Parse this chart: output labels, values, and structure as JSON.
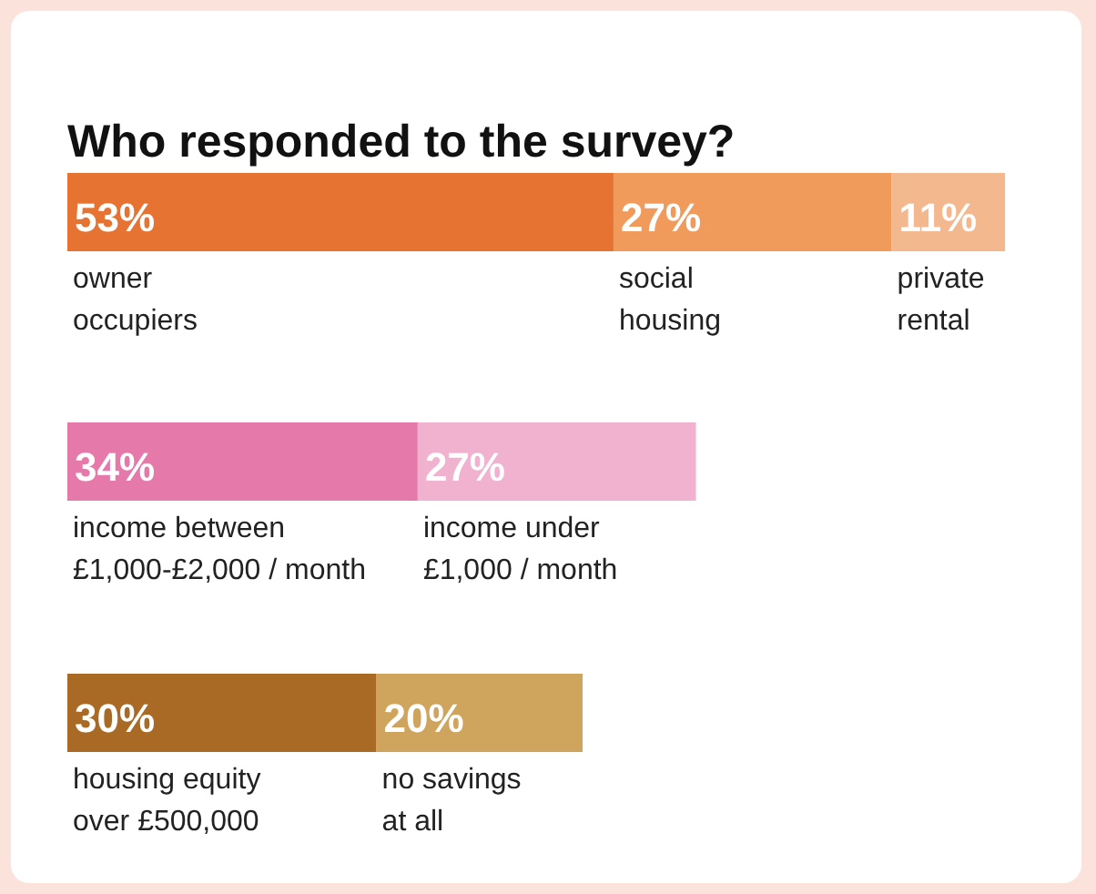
{
  "chart_data": [
    {
      "type": "bar",
      "title": "Who responded to the survey?",
      "orientation": "horizontal",
      "stacked": true,
      "categories": [
        null
      ],
      "series": [
        {
          "name": "owner\noccupiers",
          "color": "#e67332",
          "values": [
            53
          ],
          "value_labels": [
            "53%"
          ]
        },
        {
          "name": "social\nhousing",
          "color": "#f09a5c",
          "values": [
            27
          ],
          "value_labels": [
            "27%"
          ]
        },
        {
          "name": "private\nrental",
          "color": "#f4b88f",
          "values": [
            11
          ],
          "value_labels": [
            "11%"
          ]
        }
      ]
    },
    {
      "type": "bar",
      "orientation": "horizontal",
      "stacked": true,
      "categories": [
        null
      ],
      "series": [
        {
          "name": "income between\n£1,000-£2,000 / month",
          "color": "#e479aa",
          "values": [
            34
          ],
          "value_labels": [
            "34%"
          ]
        },
        {
          "name": "income under\n£1,000 / month",
          "color": "#f1b2cf",
          "values": [
            27
          ],
          "value_labels": [
            "27%"
          ]
        }
      ]
    },
    {
      "type": "bar",
      "orientation": "horizontal",
      "stacked": true,
      "categories": [
        null
      ],
      "series": [
        {
          "name": "housing equity\nover £500,000",
          "color": "#a86a24",
          "values": [
            30
          ],
          "value_labels": [
            "30%"
          ]
        },
        {
          "name": "no savings\nat all",
          "color": "#cfa55e",
          "values": [
            20
          ],
          "value_labels": [
            "20%"
          ]
        }
      ]
    }
  ]
}
